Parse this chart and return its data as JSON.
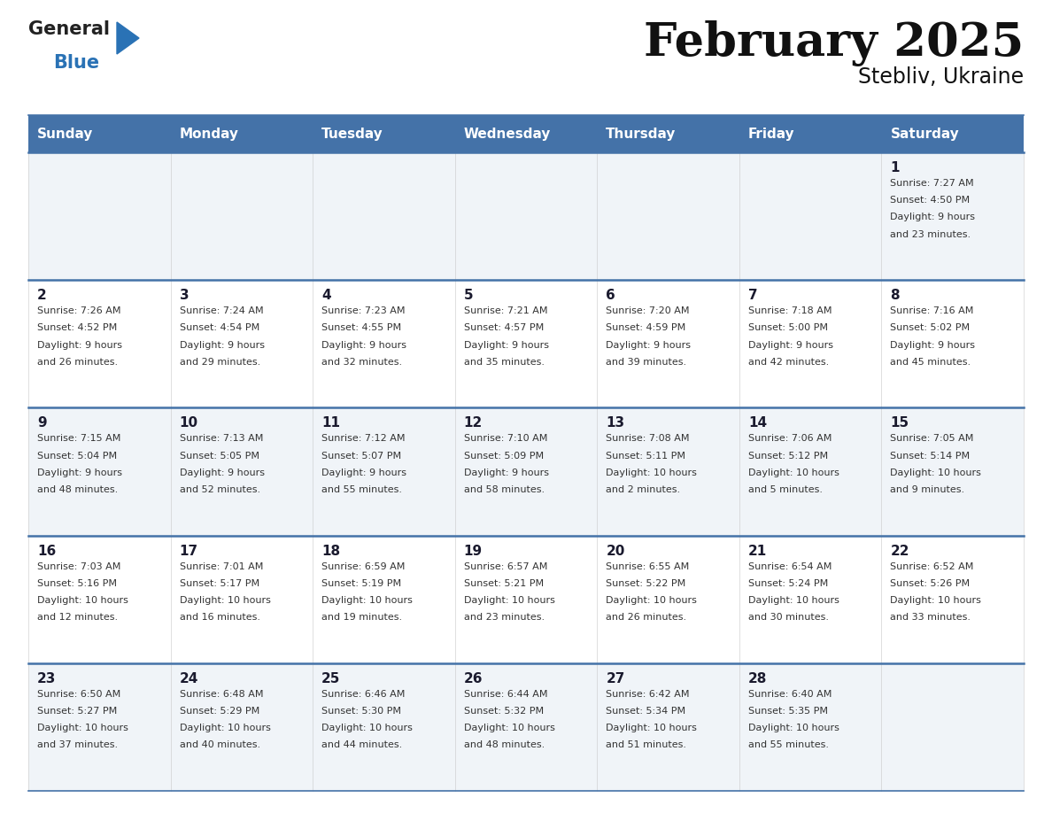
{
  "title": "February 2025",
  "subtitle": "Stebliv, Ukraine",
  "header_bg_color": "#4472a8",
  "header_text_color": "#ffffff",
  "cell_bg_color": "#f0f4f8",
  "cell_bg_white": "#ffffff",
  "day_number_color": "#1a1a2e",
  "info_text_color": "#333333",
  "border_color": "#4472a8",
  "days_of_week": [
    "Sunday",
    "Monday",
    "Tuesday",
    "Wednesday",
    "Thursday",
    "Friday",
    "Saturday"
  ],
  "weeks": [
    [
      {
        "day": "",
        "info": ""
      },
      {
        "day": "",
        "info": ""
      },
      {
        "day": "",
        "info": ""
      },
      {
        "day": "",
        "info": ""
      },
      {
        "day": "",
        "info": ""
      },
      {
        "day": "",
        "info": ""
      },
      {
        "day": "1",
        "info": "Sunrise: 7:27 AM\nSunset: 4:50 PM\nDaylight: 9 hours\nand 23 minutes."
      }
    ],
    [
      {
        "day": "2",
        "info": "Sunrise: 7:26 AM\nSunset: 4:52 PM\nDaylight: 9 hours\nand 26 minutes."
      },
      {
        "day": "3",
        "info": "Sunrise: 7:24 AM\nSunset: 4:54 PM\nDaylight: 9 hours\nand 29 minutes."
      },
      {
        "day": "4",
        "info": "Sunrise: 7:23 AM\nSunset: 4:55 PM\nDaylight: 9 hours\nand 32 minutes."
      },
      {
        "day": "5",
        "info": "Sunrise: 7:21 AM\nSunset: 4:57 PM\nDaylight: 9 hours\nand 35 minutes."
      },
      {
        "day": "6",
        "info": "Sunrise: 7:20 AM\nSunset: 4:59 PM\nDaylight: 9 hours\nand 39 minutes."
      },
      {
        "day": "7",
        "info": "Sunrise: 7:18 AM\nSunset: 5:00 PM\nDaylight: 9 hours\nand 42 minutes."
      },
      {
        "day": "8",
        "info": "Sunrise: 7:16 AM\nSunset: 5:02 PM\nDaylight: 9 hours\nand 45 minutes."
      }
    ],
    [
      {
        "day": "9",
        "info": "Sunrise: 7:15 AM\nSunset: 5:04 PM\nDaylight: 9 hours\nand 48 minutes."
      },
      {
        "day": "10",
        "info": "Sunrise: 7:13 AM\nSunset: 5:05 PM\nDaylight: 9 hours\nand 52 minutes."
      },
      {
        "day": "11",
        "info": "Sunrise: 7:12 AM\nSunset: 5:07 PM\nDaylight: 9 hours\nand 55 minutes."
      },
      {
        "day": "12",
        "info": "Sunrise: 7:10 AM\nSunset: 5:09 PM\nDaylight: 9 hours\nand 58 minutes."
      },
      {
        "day": "13",
        "info": "Sunrise: 7:08 AM\nSunset: 5:11 PM\nDaylight: 10 hours\nand 2 minutes."
      },
      {
        "day": "14",
        "info": "Sunrise: 7:06 AM\nSunset: 5:12 PM\nDaylight: 10 hours\nand 5 minutes."
      },
      {
        "day": "15",
        "info": "Sunrise: 7:05 AM\nSunset: 5:14 PM\nDaylight: 10 hours\nand 9 minutes."
      }
    ],
    [
      {
        "day": "16",
        "info": "Sunrise: 7:03 AM\nSunset: 5:16 PM\nDaylight: 10 hours\nand 12 minutes."
      },
      {
        "day": "17",
        "info": "Sunrise: 7:01 AM\nSunset: 5:17 PM\nDaylight: 10 hours\nand 16 minutes."
      },
      {
        "day": "18",
        "info": "Sunrise: 6:59 AM\nSunset: 5:19 PM\nDaylight: 10 hours\nand 19 minutes."
      },
      {
        "day": "19",
        "info": "Sunrise: 6:57 AM\nSunset: 5:21 PM\nDaylight: 10 hours\nand 23 minutes."
      },
      {
        "day": "20",
        "info": "Sunrise: 6:55 AM\nSunset: 5:22 PM\nDaylight: 10 hours\nand 26 minutes."
      },
      {
        "day": "21",
        "info": "Sunrise: 6:54 AM\nSunset: 5:24 PM\nDaylight: 10 hours\nand 30 minutes."
      },
      {
        "day": "22",
        "info": "Sunrise: 6:52 AM\nSunset: 5:26 PM\nDaylight: 10 hours\nand 33 minutes."
      }
    ],
    [
      {
        "day": "23",
        "info": "Sunrise: 6:50 AM\nSunset: 5:27 PM\nDaylight: 10 hours\nand 37 minutes."
      },
      {
        "day": "24",
        "info": "Sunrise: 6:48 AM\nSunset: 5:29 PM\nDaylight: 10 hours\nand 40 minutes."
      },
      {
        "day": "25",
        "info": "Sunrise: 6:46 AM\nSunset: 5:30 PM\nDaylight: 10 hours\nand 44 minutes."
      },
      {
        "day": "26",
        "info": "Sunrise: 6:44 AM\nSunset: 5:32 PM\nDaylight: 10 hours\nand 48 minutes."
      },
      {
        "day": "27",
        "info": "Sunrise: 6:42 AM\nSunset: 5:34 PM\nDaylight: 10 hours\nand 51 minutes."
      },
      {
        "day": "28",
        "info": "Sunrise: 6:40 AM\nSunset: 5:35 PM\nDaylight: 10 hours\nand 55 minutes."
      },
      {
        "day": "",
        "info": ""
      }
    ]
  ],
  "logo_text1": "General",
  "logo_text2": "Blue",
  "logo_color1": "#222222",
  "logo_color2": "#2a72b5",
  "logo_triangle_color": "#2a72b5",
  "fig_width": 11.88,
  "fig_height": 9.18,
  "dpi": 100
}
